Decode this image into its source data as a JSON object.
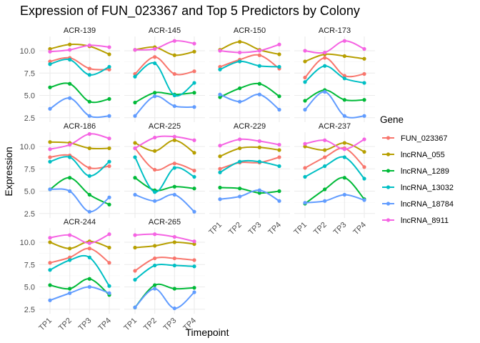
{
  "chart_data": {
    "type": "line",
    "title": "Expression of FUN_023367 and Top 5 Predictors by Colony",
    "xlabel": "Timepoint",
    "ylabel": "Expression",
    "x": [
      "TP1",
      "TP2",
      "TP3",
      "TP4"
    ],
    "ylim": [
      2.0,
      11.6
    ],
    "yticks": [
      2.5,
      5.0,
      7.5,
      10.0
    ],
    "yticklabels": [
      "2.5",
      "5.0",
      "7.5",
      "10.0"
    ],
    "grid": true,
    "legend": {
      "title": "Gene",
      "position": "right"
    },
    "genes": [
      {
        "name": "FUN_023367",
        "color": "#F8766D"
      },
      {
        "name": "lncRNA_055",
        "color": "#B79F00"
      },
      {
        "name": "lncRNA_1289",
        "color": "#00BA38"
      },
      {
        "name": "lncRNA_13032",
        "color": "#00BFC4"
      },
      {
        "name": "lncRNA_18784",
        "color": "#619CFF"
      },
      {
        "name": "lncRNA_8911",
        "color": "#F564E3"
      }
    ],
    "panels": [
      {
        "colony": "ACR-139",
        "series": {
          "FUN_023367": [
            8.8,
            9.2,
            8.0,
            7.9
          ],
          "lncRNA_055": [
            10.2,
            10.7,
            10.5,
            9.6
          ],
          "lncRNA_1289": [
            5.9,
            6.3,
            4.3,
            4.6
          ],
          "lncRNA_13032": [
            8.5,
            9.0,
            7.3,
            8.2
          ],
          "lncRNA_18784": [
            3.5,
            4.7,
            2.7,
            2.7
          ],
          "lncRNA_8911": [
            9.9,
            10.1,
            10.6,
            10.4
          ]
        }
      },
      {
        "colony": "ACR-145",
        "series": {
          "FUN_023367": [
            7.4,
            9.3,
            7.4,
            7.7
          ],
          "lncRNA_055": [
            10.1,
            10.4,
            9.5,
            9.9
          ],
          "lncRNA_1289": [
            4.2,
            5.3,
            5.1,
            5.3
          ],
          "lncRNA_13032": [
            7.1,
            8.6,
            5.0,
            6.4
          ],
          "lncRNA_18784": [
            2.7,
            4.9,
            3.8,
            3.7
          ],
          "lncRNA_8911": [
            10.1,
            10.2,
            11.1,
            10.8
          ]
        }
      },
      {
        "colony": "ACR-150",
        "series": {
          "FUN_023367": [
            8.2,
            9.0,
            9.5,
            8.0
          ],
          "lncRNA_055": [
            10.1,
            11.0,
            10.1,
            9.6
          ],
          "lncRNA_1289": [
            4.8,
            5.8,
            6.3,
            4.9
          ],
          "lncRNA_13032": [
            7.9,
            8.8,
            8.3,
            8.2
          ],
          "lncRNA_18784": [
            5.1,
            4.3,
            5.1,
            3.4
          ],
          "lncRNA_8911": [
            10.0,
            9.8,
            10.0,
            10.7
          ]
        }
      },
      {
        "colony": "ACR-173",
        "series": {
          "FUN_023367": [
            7.0,
            9.2,
            7.2,
            7.4
          ],
          "lncRNA_055": [
            8.8,
            9.6,
            9.4,
            9.1
          ],
          "lncRNA_1289": [
            4.4,
            5.6,
            4.5,
            4.5
          ],
          "lncRNA_13032": [
            6.5,
            8.3,
            6.9,
            6.4
          ],
          "lncRNA_18784": [
            3.4,
            5.4,
            2.7,
            2.7
          ],
          "lncRNA_8911": [
            10.0,
            9.8,
            11.1,
            10.2
          ]
        }
      },
      {
        "colony": "ACR-186",
        "series": {
          "FUN_023367": [
            8.8,
            9.0,
            7.6,
            7.8
          ],
          "lncRNA_055": [
            10.5,
            10.4,
            9.8,
            9.8
          ],
          "lncRNA_1289": [
            5.2,
            6.5,
            4.6,
            3.5
          ],
          "lncRNA_13032": [
            8.3,
            8.8,
            6.7,
            8.3
          ],
          "lncRNA_18784": [
            5.2,
            5.0,
            2.7,
            4.3
          ],
          "lncRNA_8911": [
            9.7,
            10.2,
            11.4,
            10.9
          ]
        }
      },
      {
        "colony": "ACR-225",
        "series": {
          "FUN_023367": [
            9.8,
            7.4,
            8.1,
            7.3
          ],
          "lncRNA_055": [
            10.4,
            9.5,
            10.7,
            9.3
          ],
          "lncRNA_1289": [
            6.5,
            5.1,
            5.5,
            5.3
          ],
          "lncRNA_13032": [
            8.8,
            4.9,
            7.6,
            6.6
          ],
          "lncRNA_18784": [
            4.6,
            3.9,
            4.6,
            2.7
          ],
          "lncRNA_8911": [
            9.8,
            11.0,
            11.1,
            10.7
          ]
        }
      },
      {
        "colony": "ACR-229",
        "series": {
          "FUN_023367": [
            7.5,
            8.2,
            8.2,
            8.8
          ],
          "lncRNA_055": [
            8.9,
            9.8,
            9.9,
            9.6
          ],
          "lncRNA_1289": [
            5.4,
            5.3,
            4.8,
            5.0
          ],
          "lncRNA_13032": [
            7.1,
            8.3,
            8.3,
            7.8
          ],
          "lncRNA_18784": [
            4.1,
            4.4,
            5.1,
            3.9
          ],
          "lncRNA_8911": [
            10.1,
            10.8,
            10.6,
            10.2
          ]
        }
      },
      {
        "colony": "ACR-237",
        "series": {
          "FUN_023367": [
            7.6,
            8.8,
            9.8,
            7.7
          ],
          "lncRNA_055": [
            10.0,
            9.6,
            10.4,
            9.4
          ],
          "lncRNA_1289": [
            3.6,
            5.2,
            6.5,
            4.1
          ],
          "lncRNA_13032": [
            6.6,
            7.8,
            8.8,
            6.4
          ],
          "lncRNA_18784": [
            3.7,
            3.9,
            4.6,
            4.0
          ],
          "lncRNA_8911": [
            10.3,
            10.7,
            9.7,
            10.8
          ]
        }
      },
      {
        "colony": "ACR-244",
        "series": {
          "FUN_023367": [
            7.7,
            8.3,
            9.3,
            7.7
          ],
          "lncRNA_055": [
            10.0,
            9.3,
            10.1,
            9.4
          ],
          "lncRNA_1289": [
            5.2,
            4.8,
            5.9,
            4.1
          ],
          "lncRNA_13032": [
            6.9,
            8.0,
            8.3,
            5.1
          ],
          "lncRNA_18784": [
            3.5,
            4.3,
            5.0,
            4.3
          ],
          "lncRNA_8911": [
            10.5,
            10.8,
            9.9,
            10.9
          ]
        }
      },
      {
        "colony": "ACR-265",
        "series": {
          "FUN_023367": [
            6.8,
            8.2,
            8.2,
            8.0
          ],
          "lncRNA_055": [
            9.4,
            9.6,
            10.0,
            9.8
          ],
          "lncRNA_1289": [
            2.7,
            5.2,
            4.8,
            4.9
          ],
          "lncRNA_13032": [
            5.8,
            7.4,
            7.4,
            7.3
          ],
          "lncRNA_18784": [
            2.7,
            4.8,
            2.6,
            4.4
          ],
          "lncRNA_8911": [
            10.8,
            10.9,
            10.6,
            10.1
          ]
        }
      }
    ]
  }
}
